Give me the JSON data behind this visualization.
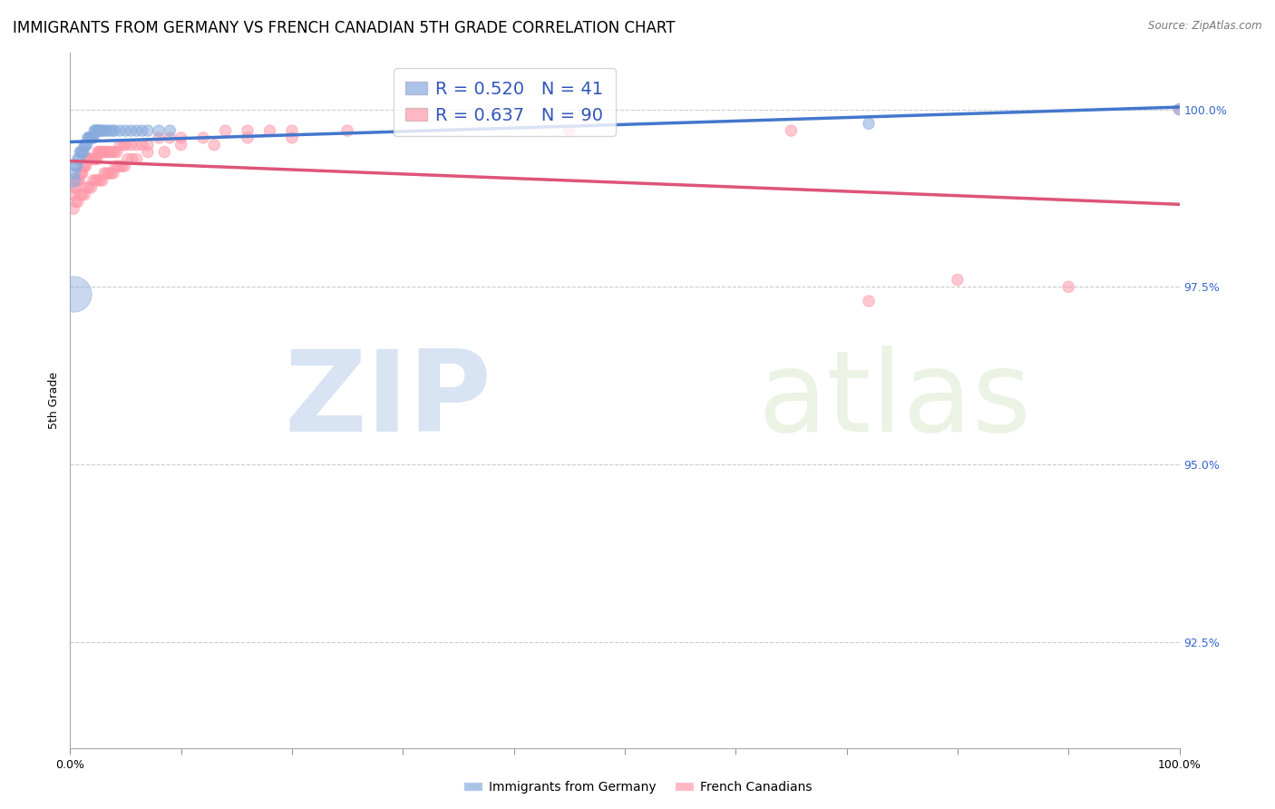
{
  "title": "IMMIGRANTS FROM GERMANY VS FRENCH CANADIAN 5TH GRADE CORRELATION CHART",
  "source": "Source: ZipAtlas.com",
  "ylabel": "5th Grade",
  "legend1_label": "Immigrants from Germany",
  "legend2_label": "French Canadians",
  "R_blue": 0.52,
  "N_blue": 41,
  "R_pink": 0.637,
  "N_pink": 90,
  "blue_color": "#88AADD",
  "pink_color": "#FF99AA",
  "blue_line_color": "#4477CC",
  "pink_line_color": "#DD5577",
  "background_color": "#FFFFFF",
  "grid_color": "#CCCCCC",
  "ytick_values": [
    1.0,
    0.975,
    0.95,
    0.925
  ],
  "xlim": [
    0.0,
    1.0
  ],
  "ylim": [
    0.91,
    1.008
  ],
  "blue_scatter_x": [
    0.003,
    0.004,
    0.005,
    0.006,
    0.007,
    0.008,
    0.009,
    0.01,
    0.011,
    0.012,
    0.013,
    0.014,
    0.015,
    0.016,
    0.017,
    0.018,
    0.019,
    0.02,
    0.021,
    0.022,
    0.023,
    0.024,
    0.025,
    0.026,
    0.027,
    0.028,
    0.03,
    0.032,
    0.035,
    0.038,
    0.04,
    0.045,
    0.05,
    0.055,
    0.06,
    0.065,
    0.07,
    0.08,
    0.09,
    0.72,
    1.0
  ],
  "blue_scatter_y": [
    0.99,
    0.991,
    0.992,
    0.992,
    0.993,
    0.993,
    0.994,
    0.994,
    0.994,
    0.994,
    0.995,
    0.995,
    0.995,
    0.996,
    0.996,
    0.996,
    0.996,
    0.996,
    0.996,
    0.997,
    0.997,
    0.997,
    0.997,
    0.997,
    0.997,
    0.997,
    0.997,
    0.997,
    0.997,
    0.997,
    0.997,
    0.997,
    0.997,
    0.997,
    0.997,
    0.997,
    0.997,
    0.997,
    0.997,
    0.998,
    1.0
  ],
  "blue_scatter_sizes": [
    120,
    80,
    80,
    80,
    80,
    80,
    80,
    80,
    80,
    80,
    80,
    80,
    80,
    80,
    80,
    80,
    80,
    80,
    80,
    80,
    80,
    80,
    80,
    80,
    80,
    80,
    80,
    80,
    80,
    80,
    80,
    80,
    80,
    80,
    80,
    80,
    80,
    80,
    80,
    80,
    80
  ],
  "blue_big_x": [
    0.003
  ],
  "blue_big_y": [
    0.974
  ],
  "blue_big_size": [
    800
  ],
  "pink_scatter_x": [
    0.003,
    0.004,
    0.005,
    0.006,
    0.007,
    0.008,
    0.009,
    0.01,
    0.011,
    0.012,
    0.013,
    0.014,
    0.015,
    0.016,
    0.017,
    0.018,
    0.019,
    0.02,
    0.021,
    0.022,
    0.023,
    0.024,
    0.025,
    0.026,
    0.027,
    0.028,
    0.029,
    0.03,
    0.031,
    0.032,
    0.034,
    0.036,
    0.038,
    0.04,
    0.042,
    0.045,
    0.048,
    0.05,
    0.055,
    0.06,
    0.065,
    0.07,
    0.08,
    0.09,
    0.1,
    0.12,
    0.14,
    0.16,
    0.18,
    0.2,
    0.003,
    0.005,
    0.007,
    0.009,
    0.011,
    0.013,
    0.015,
    0.017,
    0.019,
    0.021,
    0.023,
    0.025,
    0.027,
    0.029,
    0.031,
    0.033,
    0.035,
    0.037,
    0.039,
    0.041,
    0.043,
    0.045,
    0.047,
    0.049,
    0.052,
    0.056,
    0.06,
    0.07,
    0.085,
    0.1,
    0.13,
    0.16,
    0.2,
    0.25,
    0.45,
    0.65,
    0.72,
    0.8,
    0.9,
    1.0
  ],
  "pink_scatter_y": [
    0.988,
    0.989,
    0.989,
    0.99,
    0.99,
    0.99,
    0.991,
    0.991,
    0.991,
    0.992,
    0.992,
    0.992,
    0.993,
    0.993,
    0.993,
    0.993,
    0.993,
    0.993,
    0.993,
    0.993,
    0.993,
    0.993,
    0.994,
    0.994,
    0.994,
    0.994,
    0.994,
    0.994,
    0.994,
    0.994,
    0.994,
    0.994,
    0.994,
    0.994,
    0.994,
    0.995,
    0.995,
    0.995,
    0.995,
    0.995,
    0.995,
    0.995,
    0.996,
    0.996,
    0.996,
    0.996,
    0.997,
    0.997,
    0.997,
    0.997,
    0.986,
    0.987,
    0.987,
    0.988,
    0.988,
    0.988,
    0.989,
    0.989,
    0.989,
    0.99,
    0.99,
    0.99,
    0.99,
    0.99,
    0.991,
    0.991,
    0.991,
    0.991,
    0.991,
    0.992,
    0.992,
    0.992,
    0.992,
    0.992,
    0.993,
    0.993,
    0.993,
    0.994,
    0.994,
    0.995,
    0.995,
    0.996,
    0.996,
    0.997,
    0.997,
    0.997,
    0.973,
    0.976,
    0.975,
    1.0
  ],
  "pink_scatter_sizes": [
    80,
    80,
    80,
    80,
    80,
    80,
    80,
    80,
    80,
    80,
    80,
    80,
    80,
    80,
    80,
    80,
    80,
    80,
    80,
    80,
    80,
    80,
    80,
    80,
    80,
    80,
    80,
    80,
    80,
    80,
    80,
    80,
    80,
    80,
    80,
    80,
    80,
    80,
    80,
    80,
    80,
    80,
    80,
    80,
    80,
    80,
    80,
    80,
    80,
    80,
    80,
    80,
    80,
    80,
    80,
    80,
    80,
    80,
    80,
    80,
    80,
    80,
    80,
    80,
    80,
    80,
    80,
    80,
    80,
    80,
    80,
    80,
    80,
    80,
    80,
    80,
    80,
    80,
    80,
    80,
    80,
    80,
    80,
    80,
    80,
    80,
    80,
    80,
    80,
    80
  ],
  "watermark_zip": "ZIP",
  "watermark_atlas": "atlas",
  "title_fontsize": 12,
  "axis_fontsize": 9,
  "tick_fontsize": 9
}
